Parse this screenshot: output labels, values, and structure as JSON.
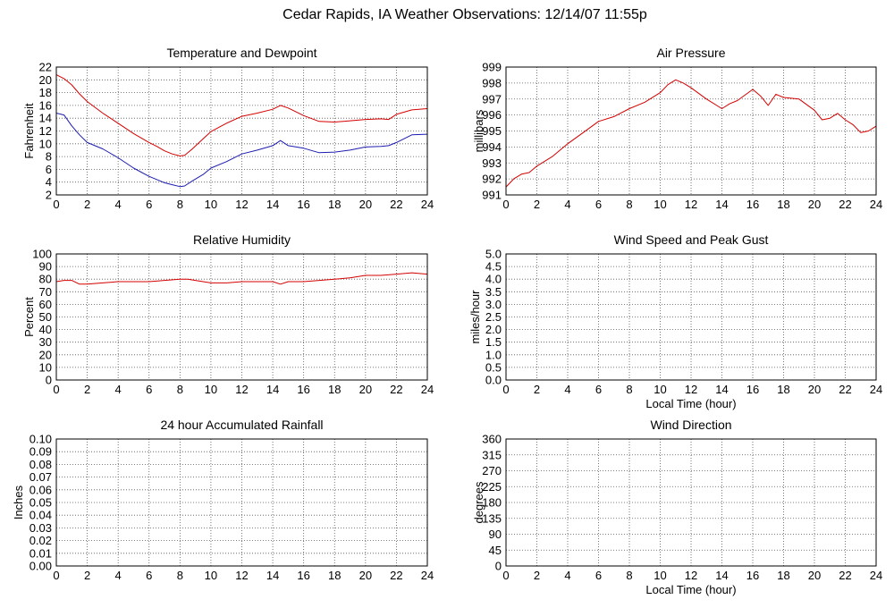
{
  "title": "Cedar Rapids, IA Weather Observations: 12/14/07 11:55p",
  "colors": {
    "red": "#d40000",
    "blue": "#1c1cb0",
    "grid": "#555555"
  },
  "chart_data": [
    {
      "id": "temp",
      "type": "line",
      "title": "Temperature and Dewpoint",
      "xlabel": "",
      "ylabel": "Fahrenheit",
      "xlim": [
        0,
        24
      ],
      "ylim": [
        2,
        22
      ],
      "xticks": [
        0,
        2,
        4,
        6,
        8,
        10,
        12,
        14,
        16,
        18,
        20,
        22,
        24
      ],
      "yticks": [
        2,
        4,
        6,
        8,
        10,
        12,
        14,
        16,
        18,
        20,
        22
      ],
      "ytick_decimals": 0,
      "grid": true,
      "series": [
        {
          "color": "#d40000",
          "x": [
            0,
            0.5,
            1,
            1.5,
            2,
            3,
            4,
            5,
            6,
            6.5,
            7,
            7.5,
            8,
            8.3,
            8.8,
            9.5,
            10,
            11,
            12,
            13,
            14,
            14.5,
            15,
            16,
            17,
            18,
            19,
            20,
            21,
            21.5,
            22,
            23,
            24
          ],
          "y": [
            20.8,
            20.2,
            19.2,
            17.8,
            16.6,
            14.8,
            13.2,
            11.6,
            10.2,
            9.6,
            8.9,
            8.4,
            8.1,
            8.2,
            9.2,
            10.8,
            11.9,
            13.2,
            14.3,
            14.8,
            15.4,
            16.0,
            15.6,
            14.4,
            13.5,
            13.4,
            13.6,
            13.8,
            13.9,
            13.8,
            14.6,
            15.3,
            15.5
          ]
        },
        {
          "color": "#1c1cb0",
          "x": [
            0,
            0.5,
            1,
            1.5,
            2,
            3,
            4,
            5,
            6,
            6.5,
            7,
            7.5,
            8,
            8.3,
            8.8,
            9.5,
            10,
            11,
            12,
            13,
            14,
            14.5,
            15,
            16,
            17,
            18,
            19,
            20,
            21,
            21.5,
            22,
            23,
            24
          ],
          "y": [
            14.8,
            14.5,
            12.8,
            11.4,
            10.2,
            9.2,
            7.8,
            6.2,
            4.9,
            4.4,
            3.9,
            3.6,
            3.3,
            3.4,
            4.2,
            5.2,
            6.2,
            7.2,
            8.4,
            9.0,
            9.7,
            10.5,
            9.7,
            9.3,
            8.6,
            8.7,
            9.0,
            9.5,
            9.6,
            9.7,
            10.2,
            11.4,
            11.5
          ]
        }
      ]
    },
    {
      "id": "pressure",
      "type": "line",
      "title": "Air Pressure",
      "xlabel": "",
      "ylabel": "millibars",
      "xlim": [
        0,
        24
      ],
      "ylim": [
        991,
        999
      ],
      "xticks": [
        0,
        2,
        4,
        6,
        8,
        10,
        12,
        14,
        16,
        18,
        20,
        22,
        24
      ],
      "yticks": [
        991,
        992,
        993,
        994,
        995,
        996,
        997,
        998,
        999
      ],
      "ytick_decimals": 0,
      "grid": true,
      "series": [
        {
          "color": "#d40000",
          "x": [
            0,
            0.5,
            1,
            1.5,
            2,
            3,
            4,
            5,
            6,
            7,
            8,
            9,
            10,
            10.5,
            11,
            11.5,
            12,
            13,
            14,
            14.5,
            15,
            16,
            16.5,
            17,
            17.5,
            18,
            19,
            20,
            20.5,
            21,
            21.5,
            22,
            22.5,
            23,
            23.5,
            24
          ],
          "y": [
            991.5,
            992.0,
            992.3,
            992.4,
            992.8,
            993.4,
            994.2,
            994.9,
            995.6,
            995.9,
            996.4,
            996.8,
            997.4,
            997.9,
            998.2,
            998.0,
            997.7,
            997.0,
            996.4,
            996.7,
            996.9,
            997.6,
            997.2,
            996.6,
            997.3,
            997.1,
            997.0,
            996.3,
            995.7,
            995.8,
            996.1,
            995.7,
            995.4,
            994.9,
            995.0,
            995.3
          ]
        }
      ]
    },
    {
      "id": "humidity",
      "type": "line",
      "title": "Relative Humidity",
      "xlabel": "",
      "ylabel": "Percent",
      "xlim": [
        0,
        24
      ],
      "ylim": [
        0,
        100
      ],
      "xticks": [
        0,
        2,
        4,
        6,
        8,
        10,
        12,
        14,
        16,
        18,
        20,
        22,
        24
      ],
      "yticks": [
        0,
        10,
        20,
        30,
        40,
        50,
        60,
        70,
        80,
        90,
        100
      ],
      "ytick_decimals": 0,
      "grid": true,
      "series": [
        {
          "color": "#d40000",
          "x": [
            0,
            0.5,
            1,
            1.5,
            2,
            3,
            4,
            5,
            6,
            7,
            8,
            8.5,
            9,
            10,
            11,
            12,
            13,
            14,
            14.5,
            15,
            16,
            17,
            18,
            19,
            20,
            21,
            22,
            23,
            24
          ],
          "y": [
            78,
            79,
            79,
            76,
            76,
            77,
            78,
            78,
            78,
            79,
            80,
            80,
            79,
            77,
            77,
            78,
            78,
            78,
            76,
            78,
            78,
            79,
            80,
            81,
            83,
            83,
            84,
            85,
            84
          ]
        }
      ]
    },
    {
      "id": "wind",
      "type": "line",
      "title": "Wind Speed and Peak Gust",
      "xlabel": "Local Time (hour)",
      "ylabel": "miles/hour",
      "xlim": [
        0,
        24
      ],
      "ylim": [
        0,
        5
      ],
      "xticks": [
        0,
        2,
        4,
        6,
        8,
        10,
        12,
        14,
        16,
        18,
        20,
        22,
        24
      ],
      "yticks": [
        0,
        0.5,
        1,
        1.5,
        2,
        2.5,
        3,
        3.5,
        4,
        4.5,
        5
      ],
      "ytick_decimals": 1,
      "grid": true,
      "series": [
        {
          "color": "#1c1cb0",
          "x": [
            0,
            24
          ],
          "y": [
            0,
            0
          ]
        }
      ]
    },
    {
      "id": "rain",
      "type": "line",
      "title": "24 hour Accumulated Rainfall",
      "xlabel": "",
      "ylabel": "Inches",
      "xlim": [
        0,
        24
      ],
      "ylim": [
        0,
        0.1
      ],
      "xticks": [
        0,
        2,
        4,
        6,
        8,
        10,
        12,
        14,
        16,
        18,
        20,
        22,
        24
      ],
      "yticks": [
        0,
        0.01,
        0.02,
        0.03,
        0.04,
        0.05,
        0.06,
        0.07,
        0.08,
        0.09,
        0.1
      ],
      "ytick_decimals": 2,
      "grid": true,
      "series": [
        {
          "color": "#d40000",
          "x": [
            0,
            24
          ],
          "y": [
            0,
            0
          ]
        }
      ]
    },
    {
      "id": "direction",
      "type": "line",
      "title": "Wind Direction",
      "xlabel": "Local Time (hour)",
      "ylabel": "degrees",
      "xlim": [
        0,
        24
      ],
      "ylim": [
        0,
        360
      ],
      "xticks": [
        0,
        2,
        4,
        6,
        8,
        10,
        12,
        14,
        16,
        18,
        20,
        22,
        24
      ],
      "yticks": [
        0,
        45,
        90,
        135,
        180,
        225,
        270,
        315,
        360
      ],
      "ytick_decimals": 0,
      "grid": true,
      "series": [
        {
          "color": "#ff0000",
          "x": [
            0,
            24
          ],
          "y": [
            0,
            0
          ],
          "thick": true
        }
      ]
    }
  ]
}
